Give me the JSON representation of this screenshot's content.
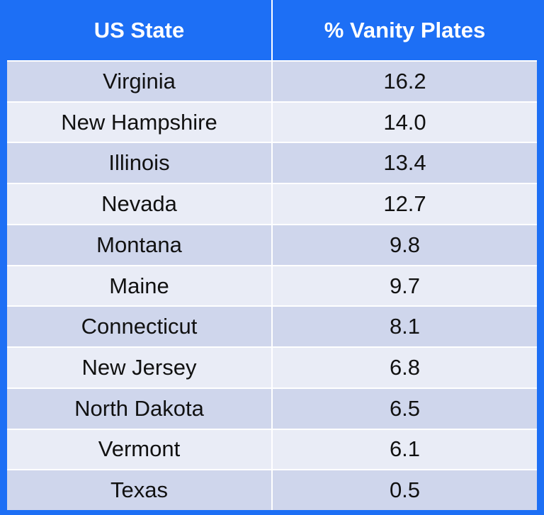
{
  "table": {
    "headers": [
      "US State",
      "% Vanity Plates"
    ]
  },
  "chart_data": {
    "type": "table",
    "columns": [
      "US State",
      "% Vanity Plates"
    ],
    "rows": [
      [
        "Virginia",
        "16.2"
      ],
      [
        "New Hampshire",
        "14.0"
      ],
      [
        "Illinois",
        "13.4"
      ],
      [
        "Nevada",
        "12.7"
      ],
      [
        "Montana",
        "9.8"
      ],
      [
        "Maine",
        "9.7"
      ],
      [
        "Connecticut",
        "8.1"
      ],
      [
        "New Jersey",
        "6.8"
      ],
      [
        "North Dakota",
        "6.5"
      ],
      [
        "Vermont",
        "6.1"
      ],
      [
        "Texas",
        "0.5"
      ]
    ]
  },
  "colors": {
    "header_bg": "#1d6ff5",
    "row_odd": "#cfd6ec",
    "row_even": "#e9ecf6"
  }
}
